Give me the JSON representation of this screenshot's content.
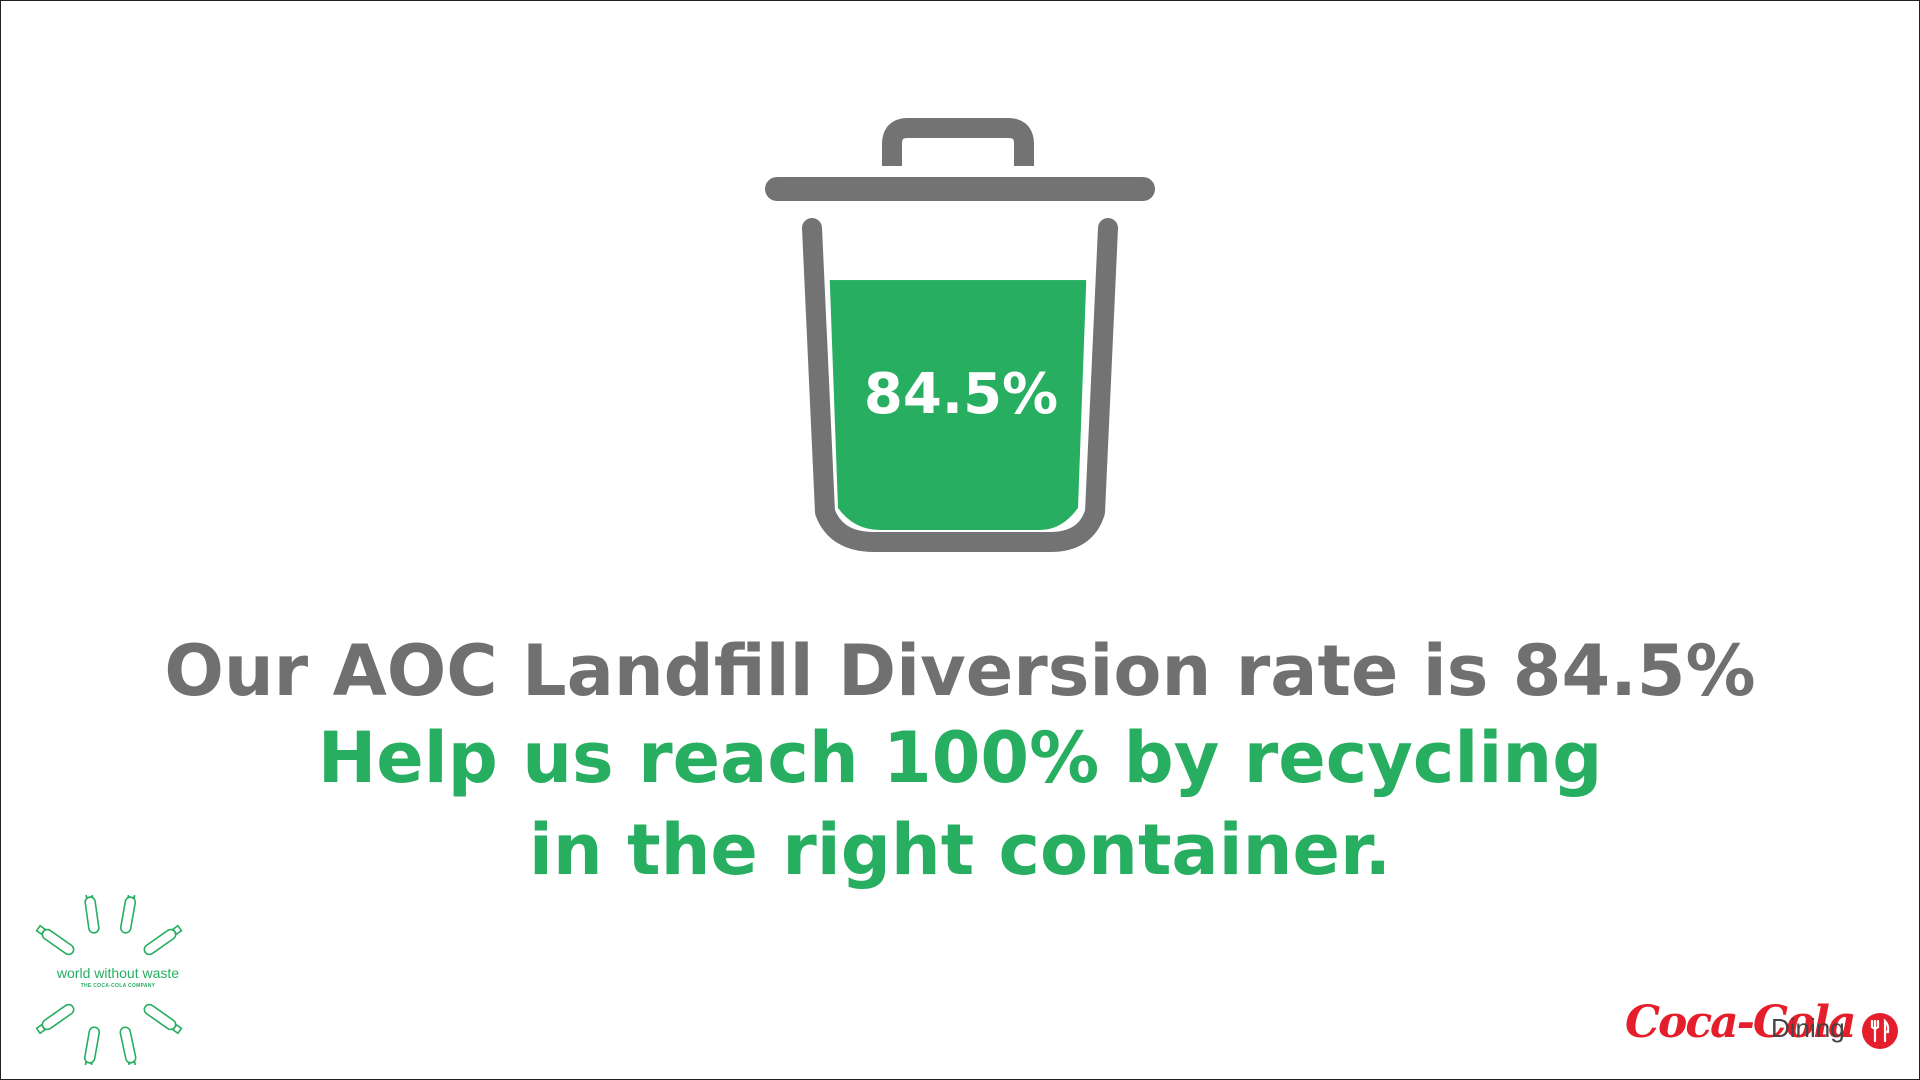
{
  "bin": {
    "fill_percent": 84.5,
    "label": "84.5%",
    "fill_color": "#27ae60",
    "outline_color": "#737373"
  },
  "headline": {
    "line1": "Our AOC Landfill Diversion rate is 84.5%",
    "line2": "Help us reach 100% by recycling",
    "line3": "in the right container."
  },
  "logos": {
    "world_without_waste": {
      "title": "world without waste",
      "subtitle": "THE COCA-COLA COMPANY",
      "icon": "bottle-burst-icon"
    },
    "brand": {
      "name": "Coca-Cola",
      "label": "Dining",
      "icon": "fork-knife-icon",
      "color": "#e41e2b"
    }
  }
}
